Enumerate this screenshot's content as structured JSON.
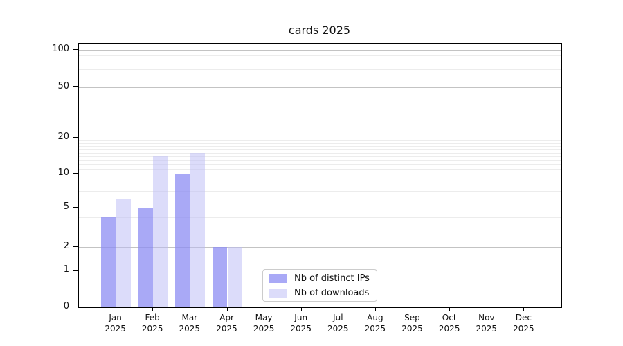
{
  "chart_data": {
    "type": "bar",
    "title": "cards 2025",
    "x_months": [
      "Jan",
      "Feb",
      "Mar",
      "Apr",
      "May",
      "Jun",
      "Jul",
      "Aug",
      "Sep",
      "Oct",
      "Nov",
      "Dec"
    ],
    "x_year": "2025",
    "series": [
      {
        "name": "Nb of distinct IPs",
        "color": "rgba(140,140,243,0.75)",
        "values": [
          4,
          5,
          10,
          2,
          0,
          0,
          0,
          0,
          0,
          0,
          0,
          0
        ]
      },
      {
        "name": "Nb of downloads",
        "color": "rgba(185,185,245,0.5)",
        "values": [
          6,
          14,
          15,
          2,
          0,
          0,
          0,
          0,
          0,
          0,
          0,
          0
        ]
      }
    ],
    "yscale": "symlog",
    "ylim": [
      0,
      112
    ],
    "ytick_labels": [
      "100",
      "50",
      "20",
      "10",
      "5",
      "2",
      "1",
      "0"
    ],
    "ytick_values": [
      100,
      50,
      20,
      10,
      5,
      2,
      1,
      0
    ],
    "minor_grid_values": [
      3,
      4,
      6,
      7,
      8,
      9,
      11,
      12,
      13,
      14,
      15,
      16,
      17,
      18,
      19,
      30,
      40,
      60,
      70,
      80,
      90
    ],
    "grid": true,
    "legend_position": "lower center"
  },
  "colors": {
    "grid_major": "#c3c3c3",
    "grid_minor": "#ececec",
    "spine": "#000000",
    "background": "#ffffff",
    "bar_dark": "#a9a9f5",
    "bar_light": "#dcdcf9"
  }
}
